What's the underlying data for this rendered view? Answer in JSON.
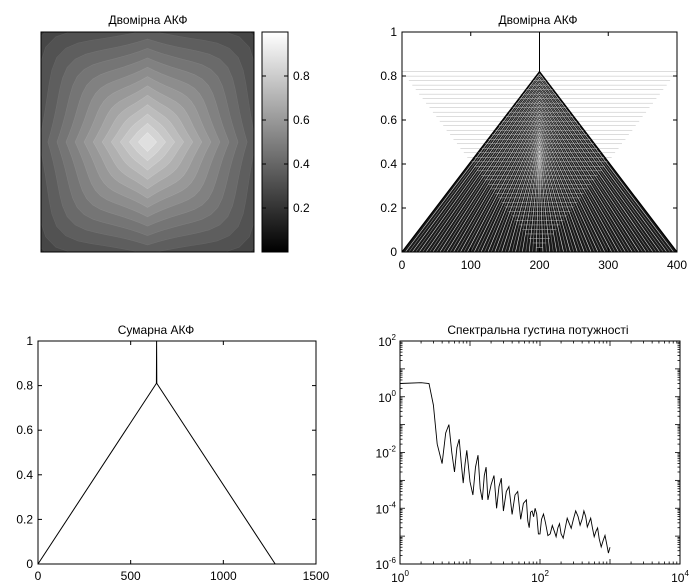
{
  "chart_data": [
    {
      "type": "heatmap",
      "title": "Двомірна АКФ",
      "description_values": "2D autocorrelation: diamond-shaped, peak at centre",
      "colormap": "gray",
      "peak_value": 1.0,
      "colorbar": {
        "ticks": [
          0.2,
          0.4,
          0.6,
          0.8
        ],
        "range": [
          0,
          1
        ]
      },
      "contour_levels": [
        0.95,
        0.9,
        0.85,
        0.8,
        0.75,
        0.7,
        0.65,
        0.6,
        0.55,
        0.5,
        0.45,
        0.4,
        0.35,
        0.3,
        0.25,
        0.2,
        0.15,
        0.1,
        0.05
      ]
    },
    {
      "type": "line",
      "title": "Двомірна АКФ",
      "description_values": "many overlaid triangular profiles with apex at x=200",
      "xlim": [
        0,
        400
      ],
      "ylim": [
        0,
        1
      ],
      "xticks": [
        0,
        100,
        200,
        300,
        400
      ],
      "yticks": [
        0,
        0.2,
        0.4,
        0.6,
        0.8,
        1
      ],
      "apex": {
        "x": 200,
        "y": 0.82
      },
      "spike": {
        "x": 200,
        "y": 1.0
      },
      "band_count": 40
    },
    {
      "type": "line",
      "title": "Сумарна АКФ",
      "xlim": [
        0,
        1500
      ],
      "ylim": [
        0,
        1
      ],
      "xticks": [
        0,
        500,
        1000,
        1500
      ],
      "yticks": [
        0,
        0.2,
        0.4,
        0.6,
        0.8,
        1
      ],
      "series": [
        {
          "x": [
            0,
            639,
            640,
            641,
            1280
          ],
          "y": [
            0,
            0.81,
            1.0,
            0.81,
            0
          ]
        }
      ]
    },
    {
      "type": "line",
      "title": "Спектральна густина потужності",
      "xscale": "log",
      "yscale": "log",
      "xlim": [
        1,
        10000
      ],
      "ylim": [
        1e-06,
        100
      ],
      "xticks": [
        {
          "base": "10",
          "exp": "0"
        },
        {
          "base": "10",
          "exp": "2"
        },
        {
          "base": "10",
          "exp": "4"
        }
      ],
      "yticks": [
        {
          "base": "10",
          "exp": "-6"
        },
        {
          "base": "10",
          "exp": "-4"
        },
        {
          "base": "10",
          "exp": "-2"
        },
        {
          "base": "10",
          "exp": "0"
        },
        {
          "base": "10",
          "exp": "2"
        }
      ],
      "series": [
        {
          "x": [
            1,
            2,
            2.6,
            3,
            3.4,
            4,
            4.5,
            5,
            5.5,
            6,
            6.5,
            7,
            7.5,
            8,
            8.5,
            9,
            10,
            11,
            12,
            13,
            14,
            15,
            16,
            17,
            18,
            20,
            22,
            24,
            26,
            28,
            30,
            33,
            36,
            40,
            44,
            48,
            53,
            58,
            64,
            70,
            77,
            85,
            95,
            105,
            120,
            140,
            160,
            180,
            200,
            230,
            260,
            300,
            350,
            400,
            450,
            500,
            560,
            630,
            700,
            800,
            900,
            1000
          ],
          "y": [
            3,
            3.2,
            3.0,
            0.5,
            0.02,
            0.004,
            0.05,
            0.1,
            0.01,
            0.002,
            0.015,
            0.03,
            0.004,
            0.0008,
            0.004,
            0.012,
            0.0009,
            0.0003,
            0.003,
            0.008,
            0.0005,
            0.0002,
            0.0015,
            0.003,
            0.0002,
            0.0007,
            0.0015,
            0.0001,
            0.0006,
            0.0012,
            8e-05,
            0.0004,
            0.0006,
            6e-05,
            0.0003,
            0.0004,
            4e-05,
            0.00015,
            0.0002,
            2e-05,
            8e-05,
            0.0001,
            1.2e-05,
            4e-05,
            3e-05,
            1.2e-05,
            1.5e-05,
            2e-05,
            1.2e-05,
            2e-05,
            3e-05,
            4e-05,
            5e-05,
            4e-05,
            5e-05,
            3e-05,
            2e-05,
            1.5e-05,
            8e-06,
            7e-06,
            5e-06,
            4e-06
          ]
        }
      ]
    }
  ]
}
